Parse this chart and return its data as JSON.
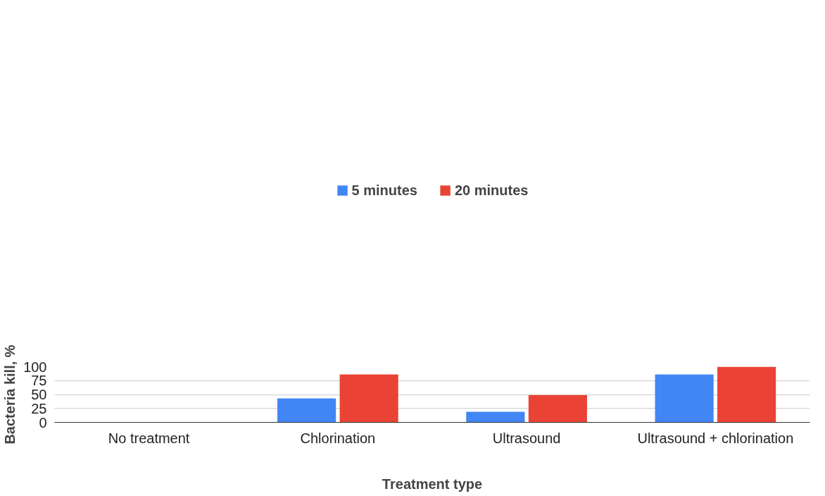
{
  "chart_data": {
    "type": "bar",
    "xlabel": "Treatment type",
    "ylabel": "Bacteria kill, %",
    "categories": [
      "No treatment",
      "Chlorination",
      "Ultrasound",
      "Ultrasound + chlorination"
    ],
    "series": [
      {
        "name": "5 minutes",
        "color": "#4285f4",
        "values": [
          0,
          43,
          19,
          86
        ]
      },
      {
        "name": "20 minutes",
        "color": "#ea4335",
        "values": [
          0,
          86,
          49,
          100
        ]
      }
    ],
    "ylim": [
      0,
      100
    ],
    "yticks": [
      0,
      25,
      50,
      75,
      100
    ],
    "grid": "y",
    "legend": "top"
  }
}
